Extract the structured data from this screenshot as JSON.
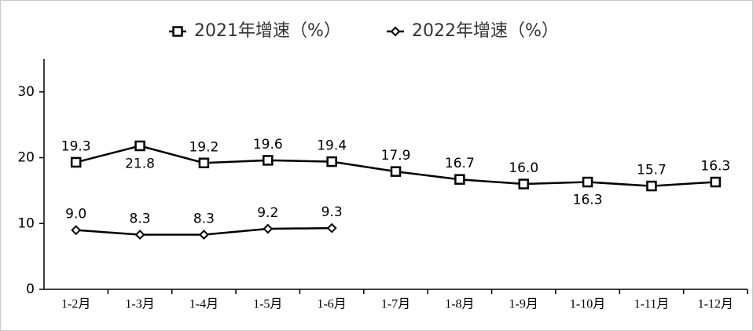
{
  "chart_data": {
    "type": "line",
    "categories": [
      "1-2月",
      "1-3月",
      "1-4月",
      "1-5月",
      "1-6月",
      "1-7月",
      "1-8月",
      "1-9月",
      "1-10月",
      "1-11月",
      "1-12月"
    ],
    "series": [
      {
        "name": "2021年增速（%）",
        "color": "#000000",
        "marker": "square",
        "values": [
          19.3,
          21.8,
          19.2,
          19.6,
          19.4,
          17.9,
          16.7,
          16.0,
          16.3,
          15.7,
          16.3
        ],
        "value_labels": [
          "19.3",
          "21.8",
          "19.2",
          "19.6",
          "19.4",
          "17.9",
          "16.7",
          "16.0",
          "16.3",
          "15.7",
          "16.3"
        ],
        "label_positions": [
          "above",
          "below",
          "above",
          "above",
          "above",
          "above",
          "above",
          "above",
          "below",
          "above",
          "above"
        ]
      },
      {
        "name": "2022年增速（%）",
        "color": "#000000",
        "marker": "diamond",
        "values": [
          9.0,
          8.3,
          8.3,
          9.2,
          9.3,
          null,
          null,
          null,
          null,
          null,
          null
        ],
        "value_labels": [
          "9.0",
          "8.3",
          "8.3",
          "9.2",
          "9.3",
          null,
          null,
          null,
          null,
          null,
          null
        ],
        "label_positions": [
          "above",
          "above",
          "above",
          "above",
          "above",
          null,
          null,
          null,
          null,
          null,
          null
        ]
      }
    ],
    "ylim": [
      0,
      35
    ],
    "yticks": [
      0,
      10,
      20,
      30
    ],
    "grid": false,
    "legend": "top"
  }
}
